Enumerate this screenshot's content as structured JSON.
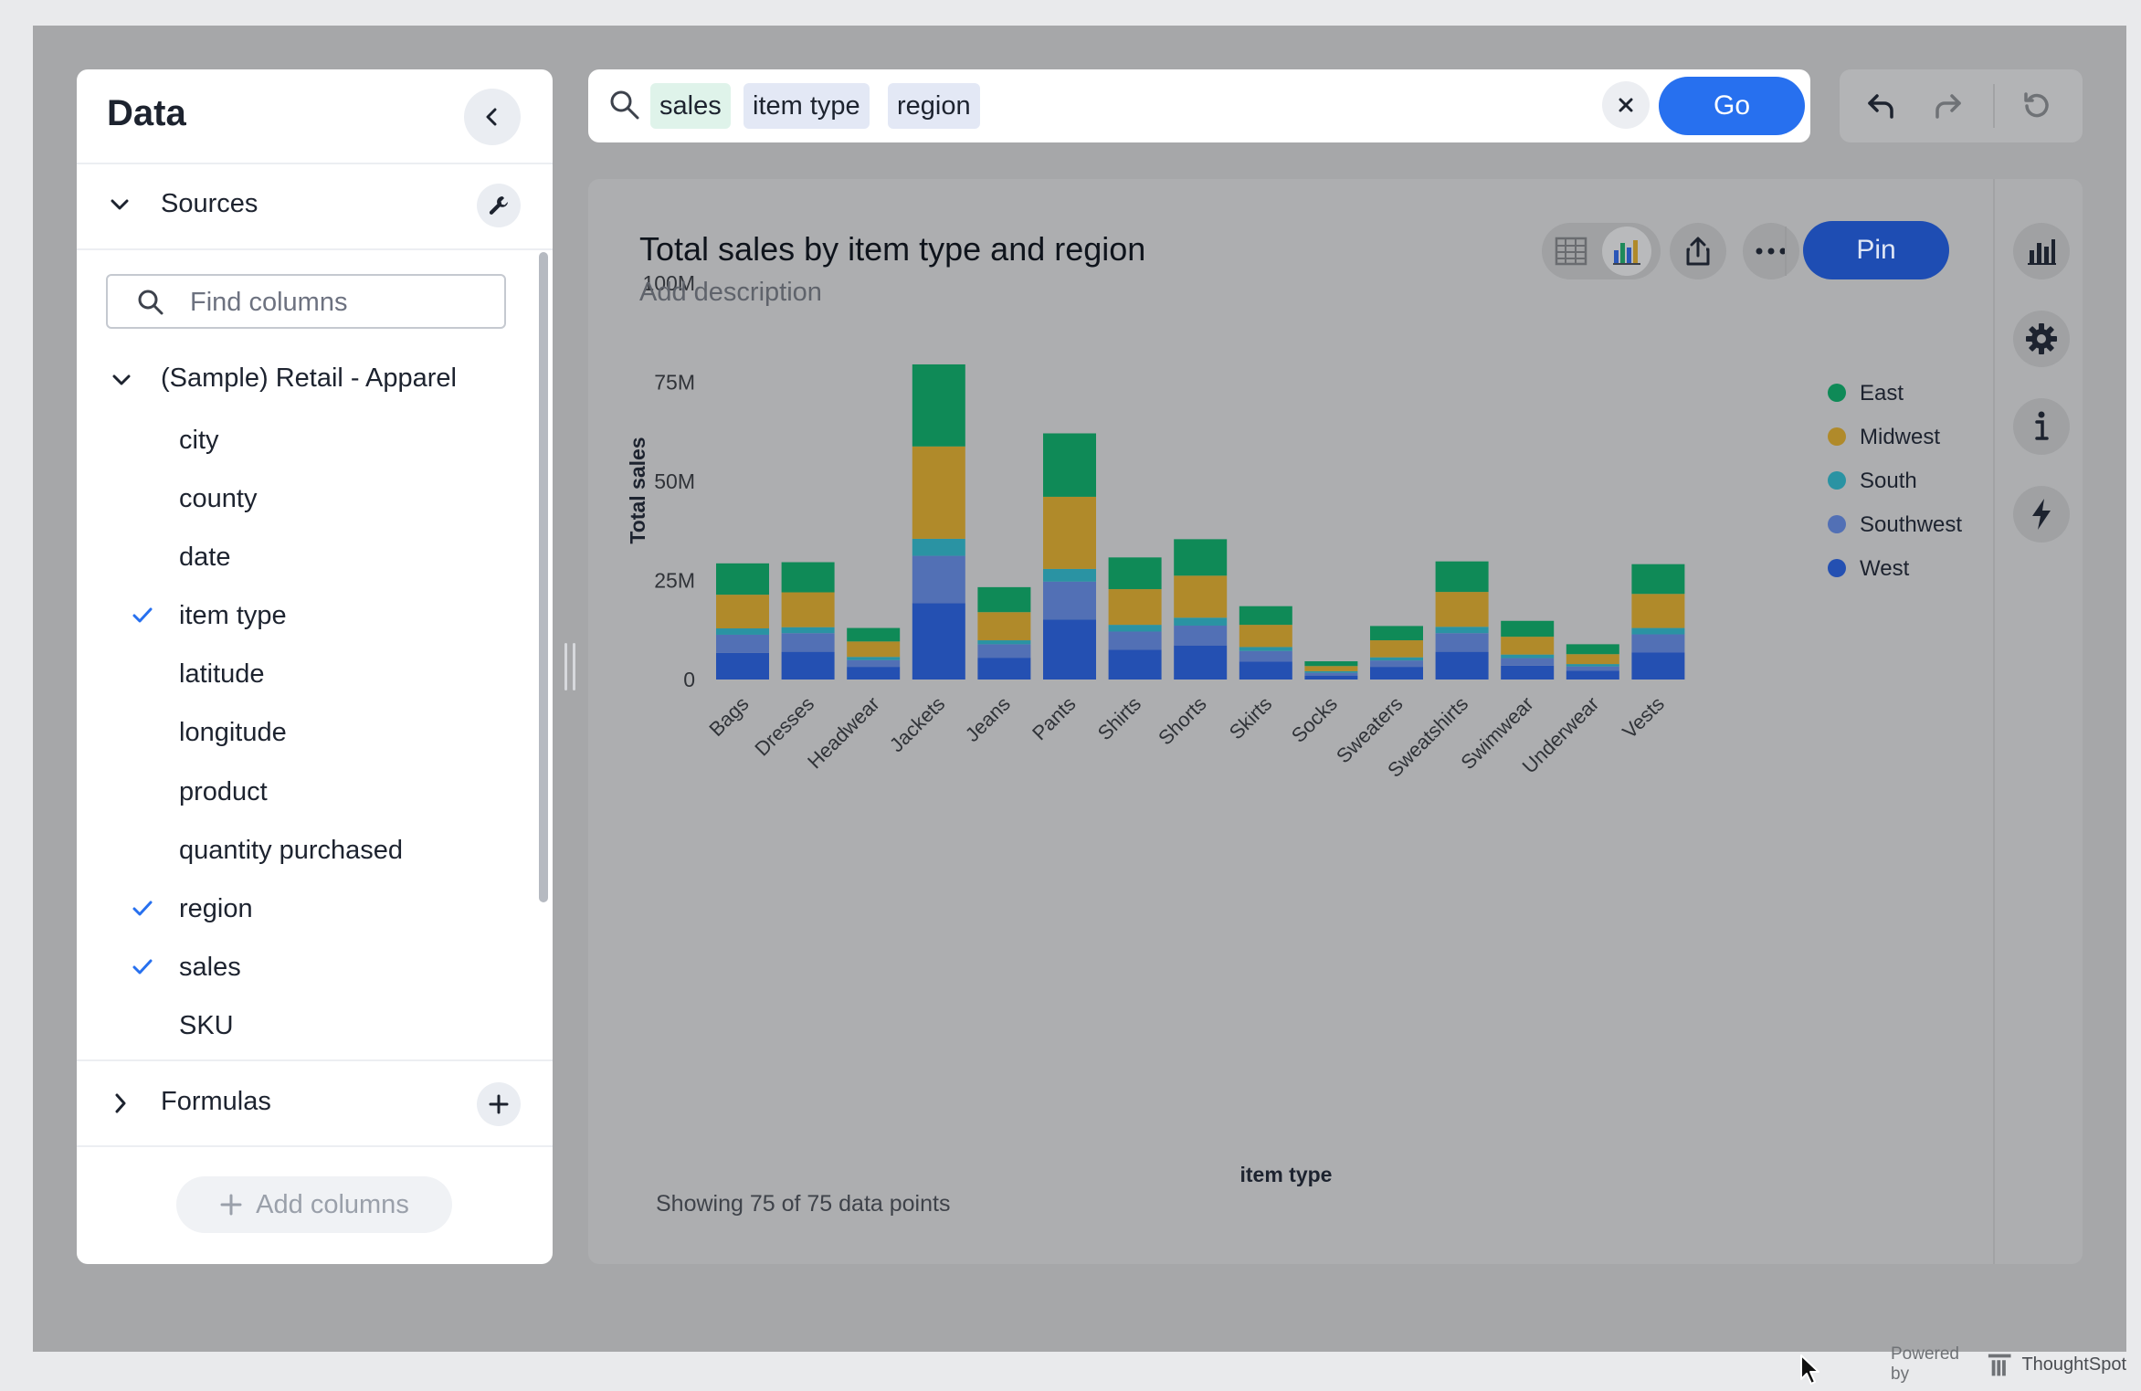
{
  "data_panel": {
    "title": "Data",
    "sources_label": "Sources",
    "find_placeholder": "Find columns",
    "source_name": "(Sample) Retail - Apparel",
    "columns": [
      {
        "label": "city",
        "checked": false
      },
      {
        "label": "county",
        "checked": false
      },
      {
        "label": "date",
        "checked": false
      },
      {
        "label": "item type",
        "checked": true
      },
      {
        "label": "latitude",
        "checked": false
      },
      {
        "label": "longitude",
        "checked": false
      },
      {
        "label": "product",
        "checked": false
      },
      {
        "label": "quantity purchased",
        "checked": false
      },
      {
        "label": "region",
        "checked": true
      },
      {
        "label": "sales",
        "checked": true
      },
      {
        "label": "SKU",
        "checked": false
      }
    ],
    "formulas_label": "Formulas",
    "add_columns_label": "Add columns"
  },
  "search": {
    "tokens": [
      {
        "label": "sales",
        "kind": "measure",
        "color": "#dff3ea"
      },
      {
        "label": "item type",
        "kind": "attribute",
        "color": "#e3e8f5"
      },
      {
        "label": "region",
        "kind": "attribute",
        "color": "#e3e8f5"
      }
    ],
    "go_label": "Go"
  },
  "chart_card": {
    "title": "Total sales by item type and region",
    "description_placeholder": "Add description",
    "pin_label": "Pin",
    "footer": "Showing 75 of 75 data points"
  },
  "branding": {
    "powered_by": "Powered by",
    "brand": "ThoughtSpot"
  },
  "colors": {
    "East": "#0f8a57",
    "Midwest": "#b08a2a",
    "South": "#2a93a3",
    "Southwest": "#5270b5",
    "West": "#2450b2",
    "accent": "#2770ef",
    "pin": "#1e4db3"
  },
  "chart_data": {
    "type": "bar",
    "stacked": true,
    "title": "Total sales by item type and region",
    "xlabel": "item type",
    "ylabel": "Total sales",
    "ylim": [
      0,
      100000000
    ],
    "yticks": [
      0,
      25000000,
      50000000,
      75000000,
      100000000
    ],
    "ytick_labels": [
      "0",
      "25M",
      "50M",
      "75M",
      "100M"
    ],
    "legend_position": "top-right",
    "categories": [
      "Bags",
      "Dresses",
      "Headwear",
      "Jackets",
      "Jeans",
      "Pants",
      "Shirts",
      "Shorts",
      "Skirts",
      "Socks",
      "Sweaters",
      "Sweatshirts",
      "Swimwear",
      "Underwear",
      "Vests"
    ],
    "series": [
      {
        "name": "West",
        "values": [
          6.7,
          7.0,
          3.2,
          19.3,
          5.5,
          15.1,
          7.5,
          8.6,
          4.5,
          1.0,
          3.2,
          7.0,
          3.5,
          2.2,
          6.8
        ]
      },
      {
        "name": "Southwest",
        "values": [
          4.6,
          4.7,
          1.7,
          11.9,
          3.4,
          9.6,
          4.6,
          5.0,
          2.7,
          0.7,
          1.6,
          4.7,
          1.9,
          1.1,
          4.6
        ]
      },
      {
        "name": "South",
        "values": [
          1.6,
          1.5,
          0.8,
          4.3,
          1.0,
          3.2,
          1.7,
          2.0,
          1.0,
          0.4,
          0.8,
          1.6,
          0.9,
          0.6,
          1.6
        ]
      },
      {
        "name": "Midwest",
        "values": [
          8.5,
          8.8,
          3.9,
          23.3,
          7.1,
          18.2,
          9.0,
          10.6,
          5.6,
          1.3,
          4.3,
          8.8,
          4.5,
          2.5,
          8.6
        ]
      },
      {
        "name": "East",
        "values": [
          7.9,
          7.6,
          3.4,
          20.7,
          6.3,
          16.0,
          8.0,
          9.2,
          4.7,
          1.2,
          3.6,
          7.7,
          4.0,
          2.5,
          7.5
        ]
      }
    ],
    "footer": "Showing 75 of 75 data points"
  }
}
